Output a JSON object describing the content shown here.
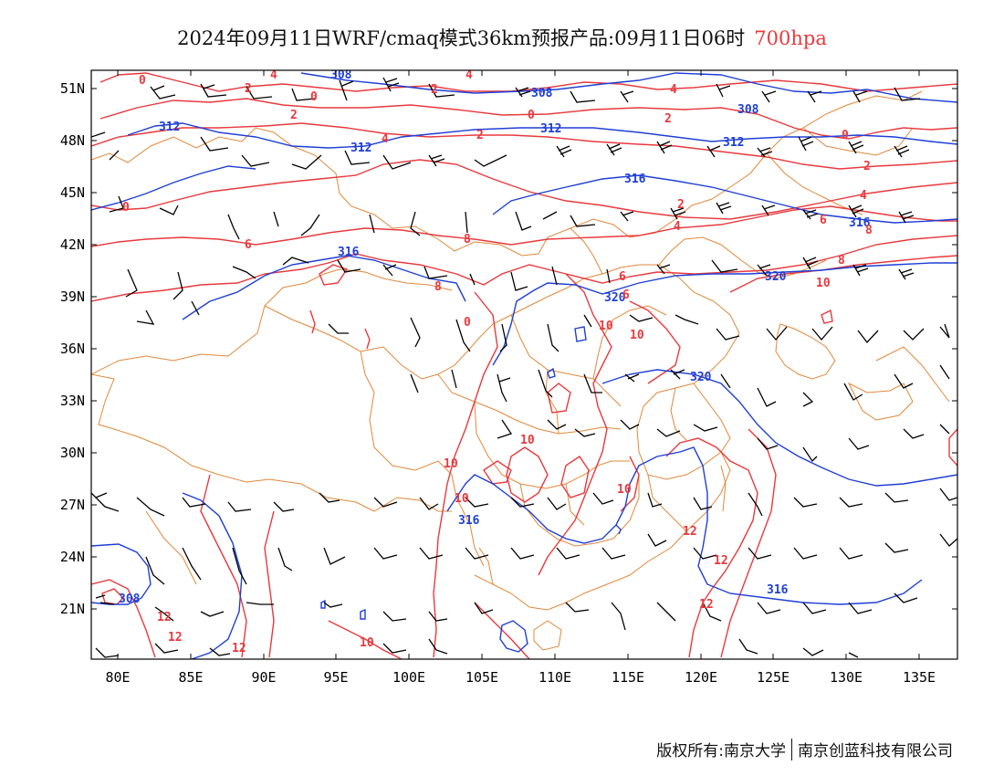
{
  "title": {
    "main": "2024年09月11日WRF/cmaq模式36km预报产品:09月11日06时",
    "level": "700hpa"
  },
  "axes": {
    "x_ticks": [
      "80E",
      "85E",
      "90E",
      "95E",
      "100E",
      "105E",
      "110E",
      "115E",
      "120E",
      "125E",
      "130E",
      "135E"
    ],
    "y_ticks": [
      "51N",
      "48N",
      "45N",
      "42N",
      "39N",
      "36N",
      "33N",
      "30N",
      "27N",
      "24N",
      "21N"
    ]
  },
  "contour_labels": {
    "height": [
      "308",
      "308",
      "308",
      "312",
      "312",
      "312",
      "312",
      "316",
      "316",
      "316",
      "316",
      "320",
      "320",
      "320",
      "316",
      "308"
    ],
    "temperature": [
      "0",
      "4",
      "2",
      "0",
      "4",
      "2",
      "0",
      "2",
      "4",
      "2",
      "0",
      "2",
      "4",
      "0",
      "2",
      "4",
      "6",
      "8",
      "2",
      "4",
      "6",
      "8",
      "10",
      "10",
      "10",
      "10",
      "10",
      "10",
      "10",
      "12",
      "12",
      "12",
      "12",
      "12",
      "10",
      "12",
      "6",
      "0",
      "6",
      "8",
      "8"
    ]
  },
  "colors": {
    "temperature_contour": "#e8393d",
    "height_contour": "#1f3fd6",
    "border": "#e0883a",
    "wind_barb": "#000000"
  },
  "footer": {
    "copyright": "版权所有:南京大学",
    "company": "南京创蓝科技有限公司"
  }
}
